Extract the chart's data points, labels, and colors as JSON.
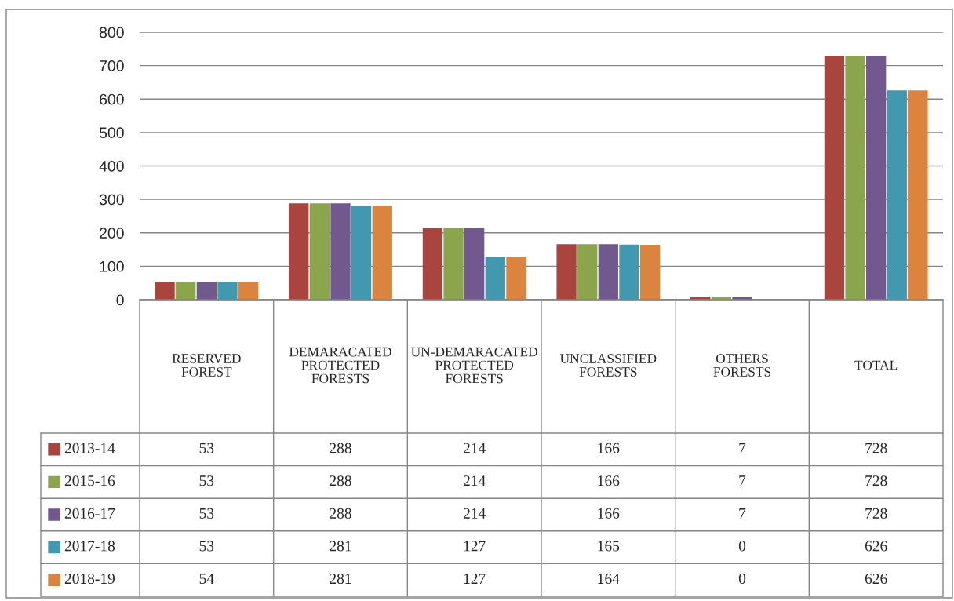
{
  "chart_data": {
    "type": "bar",
    "categories": [
      "RESERVED FOREST",
      "DEMARACATED PROTECTED FORESTS",
      "UN-DEMARACATED PROTECTED FORESTS",
      "UNCLASSIFIED FORESTS",
      "OTHERS FORESTS",
      "TOTAL"
    ],
    "series": [
      {
        "name": "2013-14",
        "color": "#a9443f",
        "values": [
          53,
          288,
          214,
          166,
          7,
          728
        ]
      },
      {
        "name": "2015-16",
        "color": "#8aa54b",
        "values": [
          53,
          288,
          214,
          166,
          7,
          728
        ]
      },
      {
        "name": "2016-17",
        "color": "#71588f",
        "values": [
          53,
          288,
          214,
          166,
          7,
          728
        ]
      },
      {
        "name": "2017-18",
        "color": "#4198af",
        "values": [
          53,
          281,
          127,
          165,
          0,
          626
        ]
      },
      {
        "name": "2018-19",
        "color": "#db8440",
        "values": [
          54,
          281,
          127,
          164,
          0,
          626
        ]
      }
    ],
    "ylim": [
      0,
      800
    ],
    "yticks": [
      0,
      100,
      200,
      300,
      400,
      500,
      600,
      700,
      800
    ],
    "grid": "y",
    "legend": "bottom",
    "data_labels": true
  }
}
